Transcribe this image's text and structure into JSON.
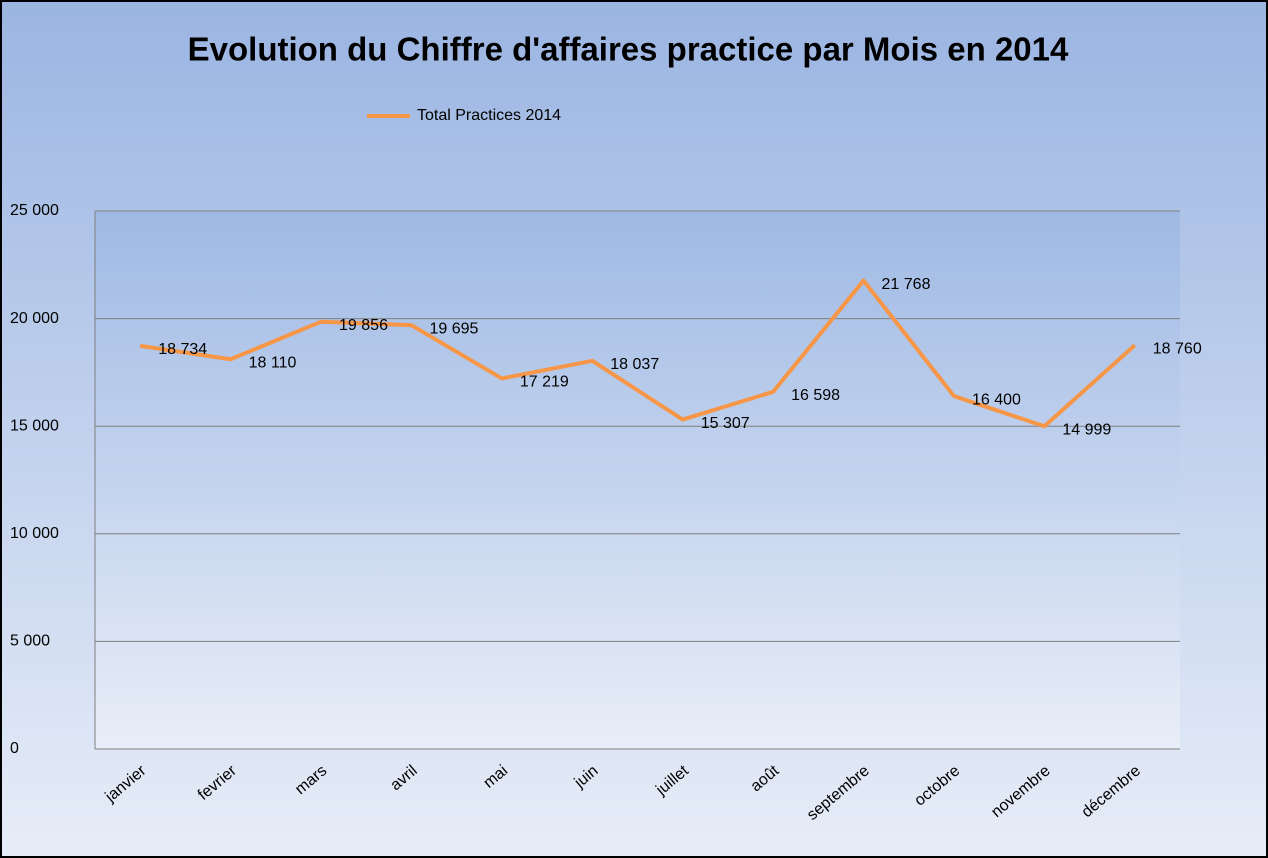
{
  "chart_data": {
    "type": "line",
    "title": "Evolution du Chiffre d'affaires practice par Mois en 2014",
    "categories": [
      "janvier",
      "fevrier",
      "mars",
      "avril",
      "mai",
      "juin",
      "juillet",
      "août",
      "septembre",
      "octobre",
      "novembre",
      "décembre"
    ],
    "series": [
      {
        "name": "Total Practices 2014",
        "color": "#f79646",
        "values": [
          18734,
          18110,
          19856,
          19695,
          17219,
          18037,
          15307,
          16598,
          21768,
          16400,
          14999,
          18760
        ],
        "value_labels": [
          "18 734",
          "18 110",
          "19 856",
          "19 695",
          "17 219",
          "18 037",
          "15 307",
          "16 598",
          "21 768",
          "16 400",
          "14 999",
          "18 760"
        ]
      }
    ],
    "ylim": [
      0,
      25000
    ],
    "yticks": [
      {
        "value": 0,
        "label": "0"
      },
      {
        "value": 5000,
        "label": "5 000"
      },
      {
        "value": 10000,
        "label": "10 000"
      },
      {
        "value": 15000,
        "label": "15 000"
      },
      {
        "value": 20000,
        "label": "20 000"
      },
      {
        "value": 25000,
        "label": "25 000"
      }
    ],
    "grid": true,
    "legend": "top"
  }
}
